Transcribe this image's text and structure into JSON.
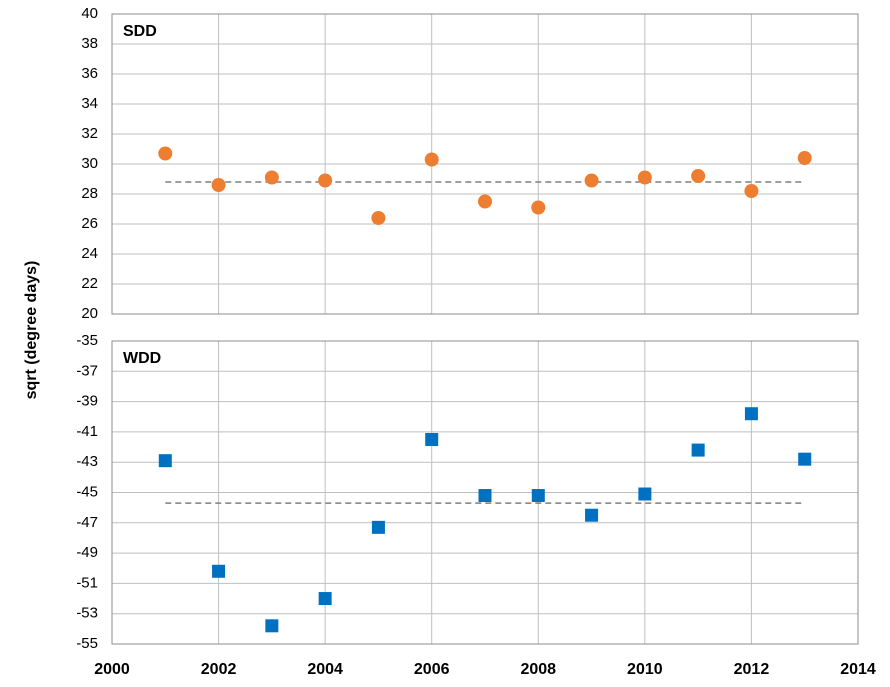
{
  "chart_data": [
    {
      "type": "scatter",
      "title": "SDD",
      "ylabel": "sqrt (degree days)",
      "marker": "circle",
      "color": "#ED7D31",
      "x": [
        2001,
        2002,
        2003,
        2004,
        2005,
        2006,
        2007,
        2008,
        2009,
        2010,
        2011,
        2012,
        2013
      ],
      "values": [
        30.7,
        28.6,
        29.1,
        28.9,
        26.4,
        30.3,
        27.5,
        27.1,
        28.9,
        29.1,
        29.2,
        28.2,
        30.4
      ],
      "mean": 28.8,
      "xlim": [
        2000,
        2014
      ],
      "xticks": [
        2000,
        2002,
        2004,
        2006,
        2008,
        2010,
        2012,
        2014
      ],
      "ylim": [
        20,
        40
      ],
      "yticks": [
        20,
        22,
        24,
        26,
        28,
        30,
        32,
        34,
        36,
        38,
        40
      ],
      "grid": true
    },
    {
      "type": "scatter",
      "title": "WDD",
      "marker": "square",
      "color": "#0070C0",
      "x": [
        2001,
        2002,
        2003,
        2004,
        2005,
        2006,
        2007,
        2008,
        2009,
        2010,
        2011,
        2012,
        2013
      ],
      "values": [
        -42.9,
        -50.2,
        -53.8,
        -52.0,
        -47.3,
        -41.5,
        -45.2,
        -45.2,
        -46.5,
        -45.1,
        -42.2,
        -39.8,
        -42.8
      ],
      "mean": -45.7,
      "xlim": [
        2000,
        2014
      ],
      "xticks": [
        2000,
        2002,
        2004,
        2006,
        2008,
        2010,
        2012,
        2014
      ],
      "ylim": [
        -55,
        -35
      ],
      "yticks": [
        -55,
        -53,
        -51,
        -49,
        -47,
        -45,
        -43,
        -41,
        -39,
        -37,
        -35
      ],
      "grid": true
    }
  ]
}
